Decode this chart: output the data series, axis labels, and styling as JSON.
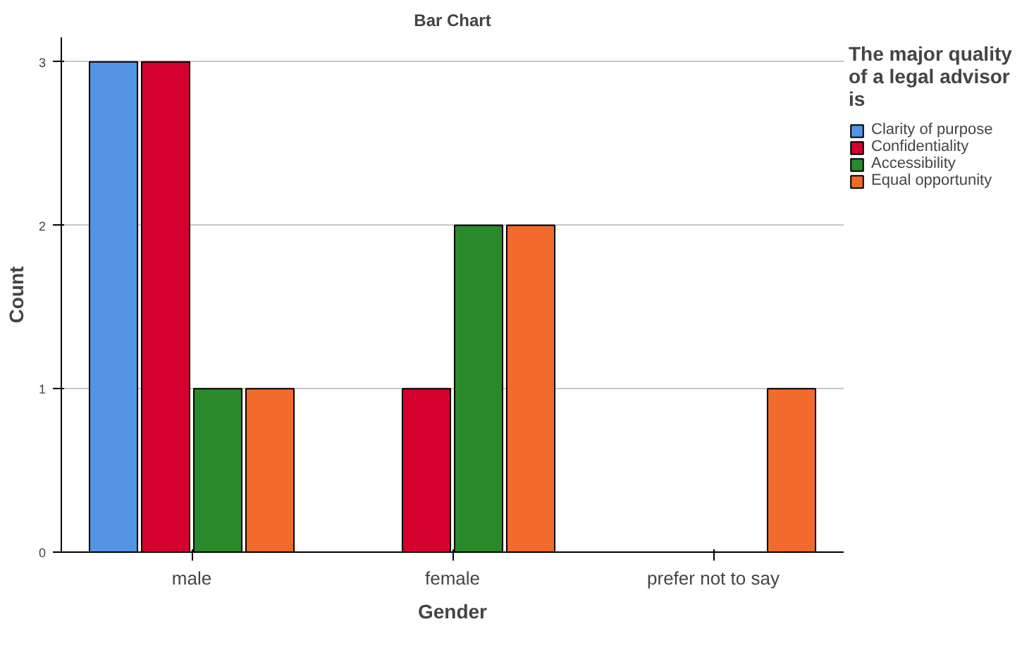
{
  "chart_data": {
    "type": "bar",
    "title": "Bar Chart",
    "xlabel": "Gender",
    "ylabel": "Count",
    "legend_title": "The major quality of a legal advisor is",
    "categories": [
      "male",
      "female",
      "prefer not to say"
    ],
    "series": [
      {
        "name": "Clarity of purpose",
        "color": "#5494e4",
        "values": [
          3,
          null,
          null
        ]
      },
      {
        "name": "Confidentiality",
        "color": "#d5002e",
        "values": [
          3,
          1,
          null
        ]
      },
      {
        "name": "Accessibility",
        "color": "#2a8a2b",
        "values": [
          1,
          2,
          null
        ]
      },
      {
        "name": "Equal opportunity",
        "color": "#f26b2c",
        "values": [
          1,
          2,
          1
        ]
      }
    ],
    "ylim": [
      0,
      3.15
    ],
    "yticks": [
      0,
      1,
      2,
      3
    ],
    "grid": "y",
    "legend": "right"
  }
}
